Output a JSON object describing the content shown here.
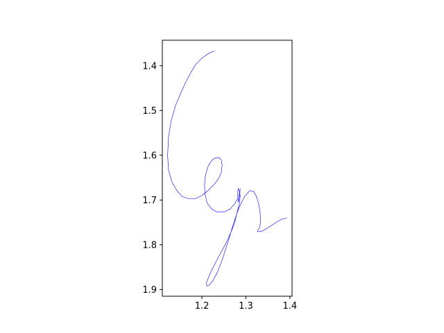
{
  "chart_data": {
    "type": "line",
    "title": "",
    "xlabel": "",
    "ylabel": "",
    "xlim": [
      1.11,
      1.405
    ],
    "ylim": [
      1.915,
      1.343
    ],
    "y_inverted": true,
    "grid": false,
    "legend": "none",
    "line_color": "#0000ff",
    "x_ticks": [
      1.2,
      1.3,
      1.4
    ],
    "x_tick_labels": [
      "1.2",
      "1.3",
      "1.4"
    ],
    "y_ticks": [
      1.4,
      1.5,
      1.6,
      1.7,
      1.8,
      1.9
    ],
    "y_tick_labels": [
      "1.4",
      "1.5",
      "1.6",
      "1.7",
      "1.8",
      "1.9"
    ],
    "series": [
      {
        "x": [
          1.228,
          1.216,
          1.2,
          1.186,
          1.176,
          1.164,
          1.152,
          1.14,
          1.13,
          1.124,
          1.122,
          1.124,
          1.132,
          1.143,
          1.155,
          1.17,
          1.185,
          1.2,
          1.215,
          1.228,
          1.238,
          1.244,
          1.246,
          1.244,
          1.238,
          1.23,
          1.222,
          1.214,
          1.208,
          1.206,
          1.207,
          1.212,
          1.222,
          1.235,
          1.25,
          1.264,
          1.275,
          1.282,
          1.286,
          1.287,
          1.286,
          1.283,
          1.281,
          1.283,
          1.287,
          1.286,
          1.283,
          1.279,
          1.274,
          1.266,
          1.256,
          1.244,
          1.232,
          1.222,
          1.215,
          1.211,
          1.21,
          1.212,
          1.217,
          1.225,
          1.235,
          1.245,
          1.254,
          1.262,
          1.272,
          1.284,
          1.297,
          1.309,
          1.318,
          1.325,
          1.33,
          1.333,
          1.333,
          1.331,
          1.328,
          1.326,
          1.329,
          1.338,
          1.352,
          1.367,
          1.381,
          1.393
        ],
        "y": [
          1.367,
          1.372,
          1.383,
          1.397,
          1.413,
          1.435,
          1.461,
          1.489,
          1.523,
          1.561,
          1.6,
          1.633,
          1.66,
          1.679,
          1.692,
          1.697,
          1.697,
          1.69,
          1.678,
          1.665,
          1.652,
          1.638,
          1.622,
          1.61,
          1.605,
          1.606,
          1.612,
          1.625,
          1.645,
          1.665,
          1.687,
          1.707,
          1.72,
          1.727,
          1.727,
          1.72,
          1.708,
          1.695,
          1.684,
          1.674,
          1.69,
          1.705,
          1.683,
          1.674,
          1.689,
          1.705,
          1.716,
          1.732,
          1.752,
          1.772,
          1.794,
          1.816,
          1.838,
          1.857,
          1.873,
          1.883,
          1.889,
          1.892,
          1.89,
          1.88,
          1.862,
          1.837,
          1.81,
          1.785,
          1.752,
          1.718,
          1.692,
          1.679,
          1.681,
          1.694,
          1.713,
          1.735,
          1.752,
          1.762,
          1.767,
          1.77,
          1.771,
          1.769,
          1.761,
          1.751,
          1.743,
          1.74
        ]
      }
    ]
  }
}
